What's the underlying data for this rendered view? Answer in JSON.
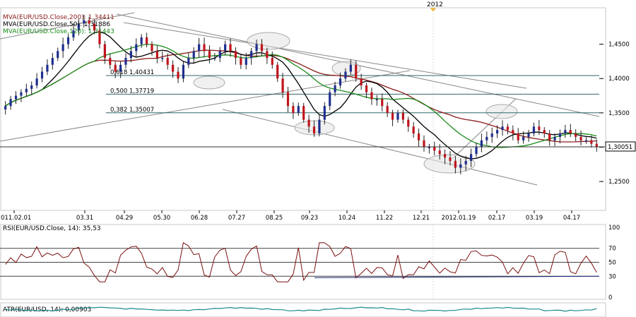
{
  "year_marker": "2012",
  "chart_data": {
    "type": "candlestick",
    "price_axis": {
      "ticks": [
        "1,4500",
        "1,4000",
        "1,3500",
        "1,3000",
        "1,2500"
      ],
      "values": [
        1.45,
        1.4,
        1.35,
        1.3,
        1.25
      ],
      "ylim": [
        1.21,
        1.5
      ]
    },
    "last_price": {
      "label": "1,30051",
      "value": 1.30051
    },
    "x_ticks": [
      "2011.02.01",
      "03.31",
      "04.29",
      "05.30",
      "06.28",
      "07.27",
      "08.25",
      "09.23",
      "10.24",
      "11.22",
      "12.21",
      "2012.01.19",
      "02.17",
      "03.19",
      "04.17"
    ],
    "price_legend": [
      {
        "text": "MVA(EUR/USD.Close,200): 1,34411",
        "color": "#8b1a1a"
      },
      {
        "text": "MVA(EUR/USD.Close,50): 1,31886",
        "color": "#000000"
      },
      {
        "text": "MVA(EUR/USD.Close,120): 1,31443",
        "color": "#1a8a1a"
      }
    ],
    "fibonacci": [
      {
        "label": "0,618 1,40431",
        "value": 1.40431
      },
      {
        "label": "0,500 1,37719",
        "value": 1.37719
      },
      {
        "label": "0,382 1,35007",
        "value": 1.35007
      }
    ],
    "close_series": [
      1.36,
      1.37,
      1.375,
      1.38,
      1.385,
      1.39,
      1.4,
      1.41,
      1.42,
      1.43,
      1.44,
      1.45,
      1.46,
      1.47,
      1.48,
      1.485,
      1.48,
      1.47,
      1.45,
      1.43,
      1.42,
      1.41,
      1.42,
      1.43,
      1.44,
      1.45,
      1.46,
      1.45,
      1.44,
      1.43,
      1.43,
      1.42,
      1.41,
      1.4,
      1.42,
      1.43,
      1.44,
      1.45,
      1.44,
      1.43,
      1.43,
      1.44,
      1.45,
      1.44,
      1.43,
      1.42,
      1.43,
      1.44,
      1.45,
      1.44,
      1.43,
      1.42,
      1.4,
      1.38,
      1.36,
      1.35,
      1.36,
      1.34,
      1.33,
      1.32,
      1.34,
      1.36,
      1.38,
      1.39,
      1.4,
      1.41,
      1.42,
      1.4,
      1.39,
      1.38,
      1.37,
      1.37,
      1.36,
      1.35,
      1.34,
      1.35,
      1.34,
      1.33,
      1.32,
      1.31,
      1.3,
      1.3,
      1.295,
      1.29,
      1.285,
      1.28,
      1.27,
      1.275,
      1.28,
      1.29,
      1.3,
      1.31,
      1.315,
      1.32,
      1.325,
      1.33,
      1.325,
      1.32,
      1.31,
      1.315,
      1.32,
      1.33,
      1.325,
      1.32,
      1.31,
      1.315,
      1.32,
      1.325,
      1.32,
      1.315,
      1.31,
      1.31,
      1.305,
      1.3005
    ],
    "rsi": {
      "legend": "RSI(EUR/USD.Close, 14): 35,53",
      "ticks": [
        "100",
        "70",
        "50",
        "30",
        "0"
      ],
      "levels": [
        100,
        70,
        50,
        30,
        0
      ],
      "value": 35.53
    },
    "atr": {
      "legend": "ATR(EUR/USD, 14): 0,00903",
      "value": 0.00903
    }
  }
}
